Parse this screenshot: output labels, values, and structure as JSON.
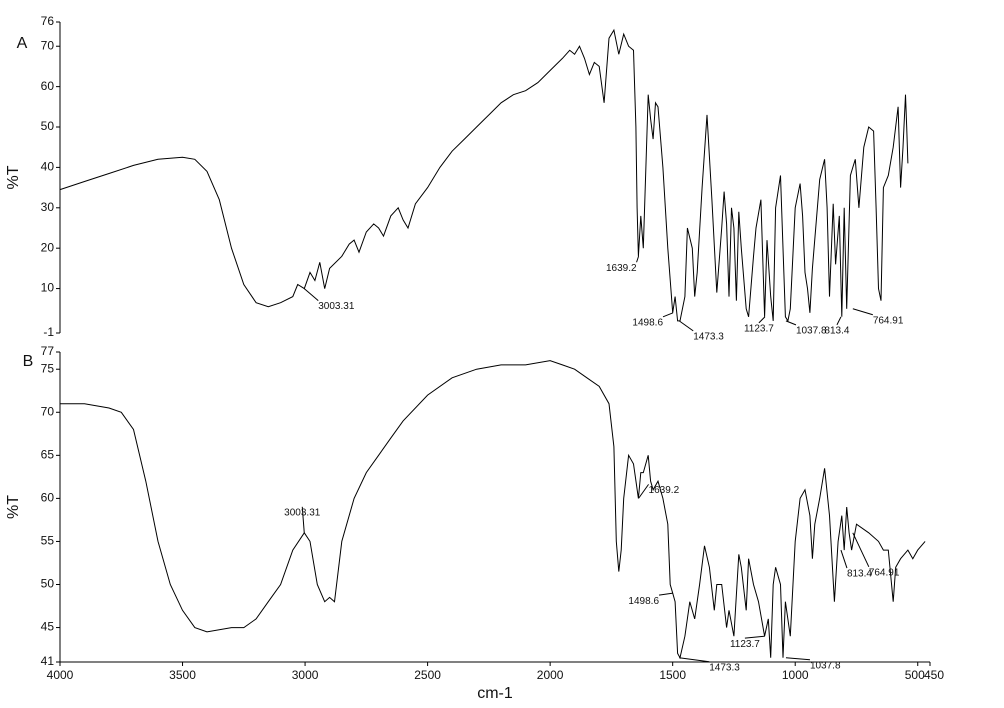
{
  "chart_data": [
    {
      "type": "line",
      "panel": "A",
      "ylabel": "%T",
      "xlim": [
        4000,
        450
      ],
      "ylim": [
        -1,
        76
      ],
      "yticks": [
        -1,
        10,
        20,
        30,
        40,
        50,
        60,
        70,
        76
      ],
      "color": "#000000",
      "x": [
        4000,
        3900,
        3800,
        3700,
        3600,
        3500,
        3450,
        3400,
        3350,
        3300,
        3250,
        3200,
        3150,
        3100,
        3050,
        3030,
        3003,
        2980,
        2960,
        2940,
        2920,
        2900,
        2850,
        2820,
        2800,
        2780,
        2750,
        2720,
        2700,
        2680,
        2650,
        2620,
        2600,
        2580,
        2550,
        2500,
        2450,
        2400,
        2350,
        2300,
        2250,
        2200,
        2150,
        2100,
        2050,
        2000,
        1950,
        1920,
        1900,
        1880,
        1860,
        1840,
        1820,
        1800,
        1780,
        1760,
        1740,
        1720,
        1700,
        1680,
        1660,
        1650,
        1645,
        1640,
        1630,
        1620,
        1600,
        1590,
        1580,
        1570,
        1560,
        1540,
        1520,
        1500,
        1490,
        1480,
        1470,
        1450,
        1440,
        1420,
        1410,
        1400,
        1380,
        1360,
        1340,
        1320,
        1300,
        1290,
        1280,
        1270,
        1260,
        1250,
        1240,
        1230,
        1220,
        1200,
        1190,
        1170,
        1160,
        1140,
        1125,
        1115,
        1100,
        1090,
        1080,
        1060,
        1050,
        1040,
        1030,
        1020,
        1000,
        980,
        970,
        960,
        950,
        940,
        930,
        900,
        880,
        870,
        860,
        845,
        835,
        820,
        810,
        800,
        790,
        775,
        765,
        755,
        740,
        720,
        700,
        680,
        670,
        660,
        650,
        640,
        620,
        600,
        580,
        570,
        560,
        550,
        545,
        540
      ],
      "values": [
        34.5,
        36.5,
        38.5,
        40.5,
        42,
        42.5,
        42,
        39,
        32,
        20,
        11,
        6.5,
        5.5,
        6.5,
        8,
        11,
        10,
        14,
        12,
        16.5,
        10,
        15,
        18,
        21,
        22,
        19,
        24,
        26,
        25,
        23,
        28,
        30,
        27,
        25,
        31,
        35,
        40,
        44,
        47,
        50,
        53,
        56,
        58,
        59,
        61,
        64,
        67,
        69,
        68,
        70,
        67,
        63,
        66,
        65,
        56,
        72,
        74,
        68,
        73,
        70,
        69,
        50,
        30,
        18,
        28,
        20,
        58,
        52,
        47,
        56,
        55,
        40,
        20,
        4,
        8,
        2,
        2,
        8,
        25,
        20,
        8,
        14,
        35,
        53,
        32,
        9,
        25,
        34,
        26,
        8,
        30,
        25,
        7,
        29,
        20,
        5,
        3,
        18,
        25,
        32,
        3,
        22,
        8,
        2,
        30,
        38,
        20,
        3,
        2,
        5,
        30,
        36,
        28,
        14,
        10,
        4,
        15,
        37,
        42,
        30,
        8,
        31,
        16,
        28,
        3,
        30,
        5,
        38,
        40,
        42,
        30,
        45,
        50,
        49,
        30,
        10,
        7,
        35,
        38,
        45,
        55,
        35,
        45,
        58,
        50,
        41
      ],
      "annotations": [
        {
          "label": "3003.31",
          "x": 3003.31,
          "y": 10
        },
        {
          "label": "1639.2",
          "x": 1639.2,
          "y": 18
        },
        {
          "label": "1498.6",
          "x": 1498.6,
          "y": 4
        },
        {
          "label": "1473.3",
          "x": 1473.3,
          "y": 2
        },
        {
          "label": "1123.7",
          "x": 1123.7,
          "y": 3
        },
        {
          "label": "1037.8",
          "x": 1037.8,
          "y": 2
        },
        {
          "label": "813.4",
          "x": 813.4,
          "y": 3
        },
        {
          "label": "764.91",
          "x": 764.91,
          "y": 5
        }
      ]
    },
    {
      "type": "line",
      "panel": "B",
      "ylabel": "%T",
      "xlabel": "cm-1",
      "xlim": [
        4000,
        450
      ],
      "ylim": [
        41,
        77
      ],
      "xticks": [
        4000,
        3500,
        3000,
        2500,
        2000,
        1500,
        1000,
        500,
        450
      ],
      "yticks": [
        41,
        45,
        50,
        55,
        60,
        65,
        70,
        75,
        77
      ],
      "color": "#000000",
      "x": [
        4000,
        3900,
        3800,
        3750,
        3700,
        3650,
        3600,
        3550,
        3500,
        3450,
        3400,
        3300,
        3250,
        3200,
        3150,
        3100,
        3050,
        3003,
        2980,
        2950,
        2920,
        2900,
        2880,
        2850,
        2800,
        2750,
        2700,
        2650,
        2600,
        2500,
        2400,
        2300,
        2200,
        2100,
        2000,
        1950,
        1900,
        1850,
        1800,
        1760,
        1740,
        1730,
        1720,
        1710,
        1700,
        1680,
        1660,
        1640,
        1630,
        1620,
        1600,
        1590,
        1580,
        1560,
        1540,
        1520,
        1510,
        1500,
        1490,
        1480,
        1470,
        1450,
        1430,
        1410,
        1390,
        1370,
        1350,
        1330,
        1320,
        1300,
        1280,
        1270,
        1250,
        1230,
        1220,
        1200,
        1190,
        1170,
        1150,
        1125,
        1110,
        1100,
        1090,
        1080,
        1060,
        1050,
        1040,
        1020,
        1000,
        980,
        960,
        940,
        930,
        920,
        900,
        880,
        860,
        840,
        825,
        810,
        800,
        790,
        780,
        770,
        750,
        700,
        660,
        640,
        620,
        600,
        590,
        570,
        540,
        520,
        500,
        470
      ],
      "values": [
        71,
        71,
        70.5,
        70,
        68,
        62,
        55,
        50,
        47,
        45,
        44.5,
        45,
        45,
        46,
        48,
        50,
        54,
        56,
        55,
        50,
        48,
        48.5,
        48,
        55,
        60,
        63,
        65,
        67,
        69,
        72,
        74,
        75,
        75.5,
        75.5,
        76,
        75.5,
        75,
        74,
        73,
        71,
        66,
        55,
        51.5,
        54,
        60,
        65,
        64,
        60,
        63,
        63,
        65,
        62,
        61,
        62,
        60,
        57,
        50,
        49,
        48,
        42,
        41.5,
        44,
        48,
        46,
        50,
        54.5,
        52,
        47,
        50,
        50,
        45,
        47,
        44,
        53.5,
        52,
        47,
        53,
        50,
        48,
        44,
        46,
        41.5,
        50,
        52,
        50,
        41.5,
        48,
        44,
        55,
        60,
        61,
        58,
        53,
        57,
        60,
        63.5,
        58,
        48,
        55,
        58,
        54,
        59,
        56,
        54,
        57,
        56,
        55,
        54,
        54,
        48,
        52,
        53,
        54,
        53,
        54,
        55
      ],
      "annotations": [
        {
          "label": "3003.31",
          "x": 3003.31,
          "y": 56
        },
        {
          "label": "1639.2",
          "x": 1639.2,
          "y": 60
        },
        {
          "label": "1498.6",
          "x": 1498.6,
          "y": 49
        },
        {
          "label": "1473.3",
          "x": 1473.3,
          "y": 41.5
        },
        {
          "label": "1123.7",
          "x": 1123.7,
          "y": 44
        },
        {
          "label": "1037.8",
          "x": 1037.8,
          "y": 41.5
        },
        {
          "label": "813.4",
          "x": 813.4,
          "y": 54
        },
        {
          "label": "764.91",
          "x": 764.91,
          "y": 56
        }
      ]
    }
  ]
}
